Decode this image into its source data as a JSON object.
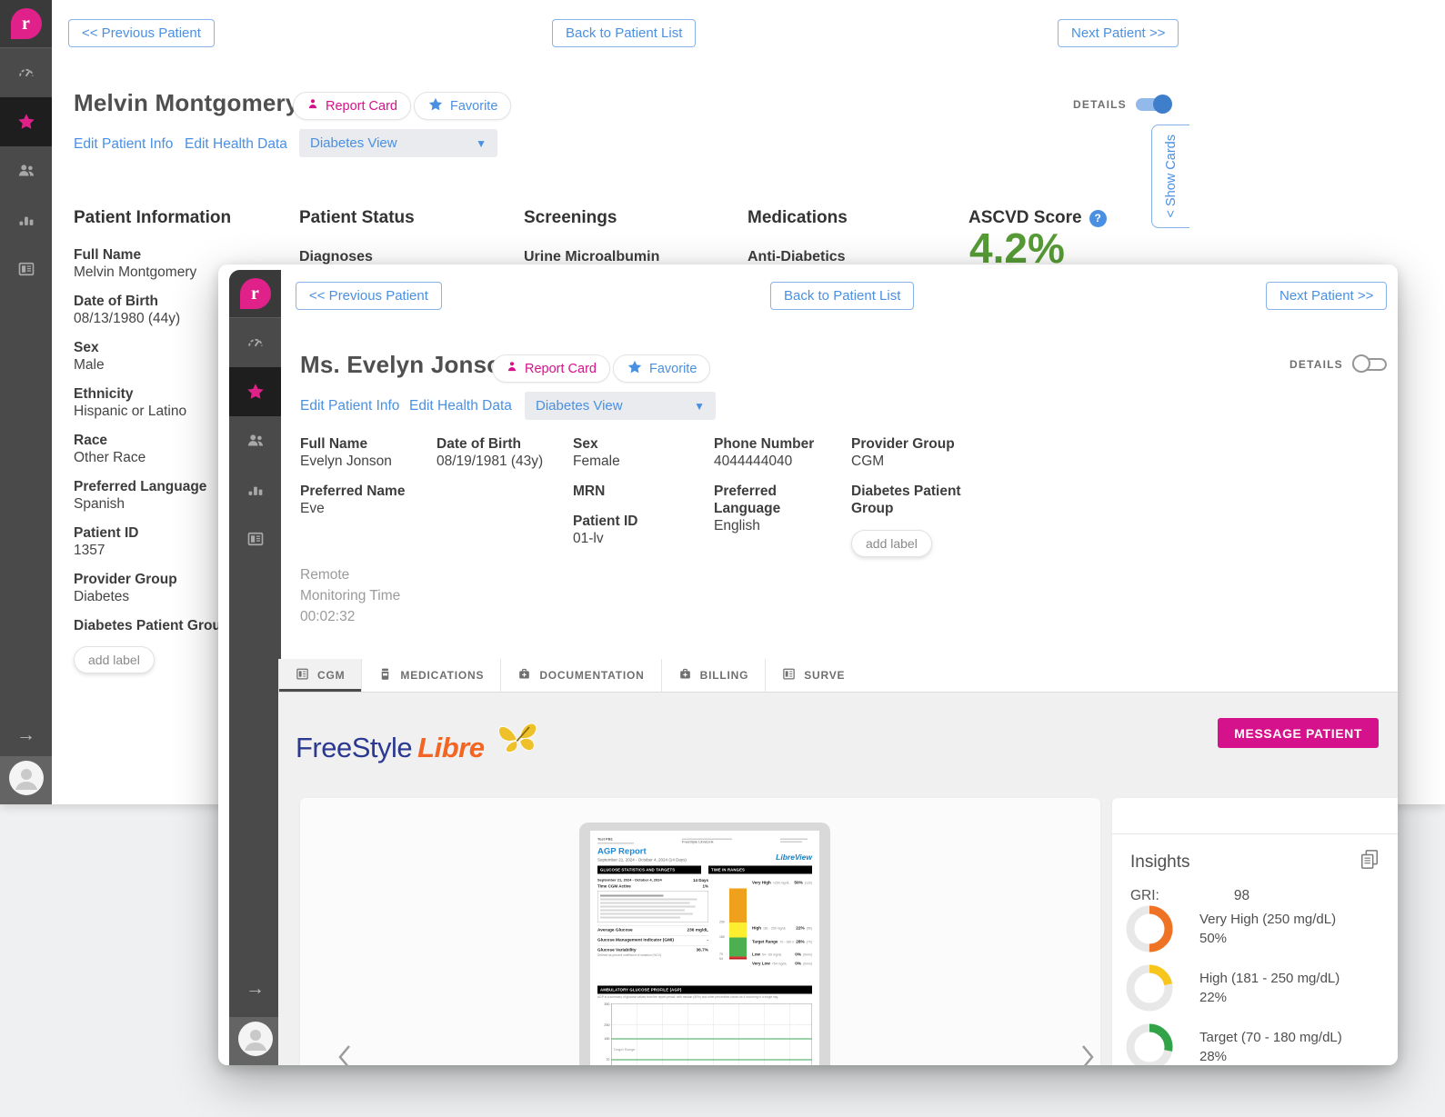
{
  "app": {
    "logo_letter": "r",
    "nav": {
      "previous_patient": "<< Previous Patient",
      "back_to_patient_list": "Back to Patient List",
      "next_patient": "Next Patient >>"
    },
    "actions": {
      "report_card": "Report Card",
      "favorite": "Favorite",
      "edit_patient_info": "Edit Patient Info",
      "edit_health_data": "Edit Health Data",
      "view_selector": "Diabetes View",
      "details_toggle": "DETAILS",
      "add_label": "add label",
      "show_cards": "< Show Cards"
    }
  },
  "background_page": {
    "patient_name": "Melvin Montgomery",
    "sections": {
      "patient_information": {
        "title": "Patient Information",
        "fields": [
          {
            "label": "Full Name",
            "value": "Melvin Montgomery"
          },
          {
            "label": "Date of Birth",
            "value": "08/13/1980 (44y)"
          },
          {
            "label": "Sex",
            "value": "Male"
          },
          {
            "label": "Ethnicity",
            "value": "Hispanic or Latino"
          },
          {
            "label": "Race",
            "value": "Other Race"
          },
          {
            "label": "Preferred Language",
            "value": "Spanish"
          },
          {
            "label": "Patient ID",
            "value": "1357"
          },
          {
            "label": "Provider Group",
            "value": "Diabetes"
          },
          {
            "label": "Diabetes Patient Group",
            "value": ""
          }
        ]
      },
      "patient_status": {
        "title": "Patient Status",
        "first_item": "Diagnoses"
      },
      "screenings": {
        "title": "Screenings",
        "first_item": "Urine Microalbumin"
      },
      "medications": {
        "title": "Medications",
        "first_item": "Anti-Diabetics"
      },
      "ascvd": {
        "title": "ASCVD Score",
        "value": "4.2%",
        "color": "#569b36"
      }
    }
  },
  "modal": {
    "patient_name": "Ms. Evelyn Jonson",
    "details_columns": [
      {
        "fields": [
          {
            "label": "Full Name",
            "value": "Evelyn Jonson"
          },
          {
            "label": "Preferred Name",
            "value": "Eve"
          }
        ]
      },
      {
        "fields": [
          {
            "label": "Date of Birth",
            "value": "08/19/1981 (43y)"
          }
        ]
      },
      {
        "fields": [
          {
            "label": "Sex",
            "value": "Female"
          },
          {
            "label": "MRN",
            "value": ""
          },
          {
            "label": "Patient ID",
            "value": "01-lv"
          }
        ]
      },
      {
        "fields": [
          {
            "label": "Phone Number",
            "value": "4044444040"
          },
          {
            "label": "Preferred Language",
            "value": "English"
          }
        ]
      },
      {
        "fields": [
          {
            "label": "Provider Group",
            "value": "CGM"
          },
          {
            "label": "Diabetes Patient Group",
            "value": ""
          }
        ]
      }
    ],
    "remote_monitoring": {
      "label": "Remote Monitoring Time",
      "value": "00:02:32"
    },
    "tabs": [
      {
        "label": "CGM"
      },
      {
        "label": "MEDICATIONS"
      },
      {
        "label": "DOCUMENTATION"
      },
      {
        "label": "BILLING"
      },
      {
        "label": "SURVE"
      }
    ],
    "cgm_tab": {
      "brand_primary": "FreeStyle",
      "brand_secondary": "Libre",
      "message_patient": "MESSAGE PATIENT",
      "insights": {
        "title": "Insights",
        "gri_label": "GRI:",
        "gri_value": "98",
        "ranges": [
          {
            "label": "Very High (250 mg/dL)",
            "percent": "50%",
            "value": 50,
            "color": "#ee7324"
          },
          {
            "label": "High (181 - 250 mg/dL)",
            "percent": "22%",
            "value": 22,
            "color": "#f8c51c"
          },
          {
            "label": "Target (70 - 180 mg/dL)",
            "percent": "28%",
            "value": 28,
            "color": "#33a349"
          }
        ]
      },
      "agp_report": {
        "patient": "Test PB1",
        "device": "FreeStyle LibreLink",
        "title": "AGP Report",
        "date_range": "September 21, 2024 - October 4, 2024",
        "days": "(14 Days)",
        "brand": "LibreView",
        "section_stats": "GLUCOSE STATISTICS AND TARGETS",
        "section_ranges": "TIME IN RANGES",
        "section_agp": "AMBULATORY GLUCOSE PROFILE (AGP)",
        "stats_days": "14 Days",
        "cgm_active_label": "Time CGM Active",
        "cgm_active_value": "1%",
        "stats": [
          {
            "label": "Average Glucose",
            "value": "236 mg/dL"
          },
          {
            "label": "Glucose Management Indicator (GMI)",
            "value": "-"
          },
          {
            "label": "Glucose Variability",
            "value": "36.7%"
          }
        ],
        "ranges": [
          {
            "label": "Very High",
            "detail": ">250 mg/dL",
            "percent": "50%",
            "time": "(12h)",
            "value": 50,
            "color": "#f0a11c"
          },
          {
            "label": "High",
            "detail": "181 - 250 mg/dL",
            "percent": "22%",
            "time": "(5h)",
            "value": 22,
            "color": "#fdee30"
          },
          {
            "label": "Target Range",
            "detail": "70 - 180 mg/dL",
            "percent": "28%",
            "time": "(7h)",
            "value": 28,
            "color": "#4caf50"
          },
          {
            "label": "Low",
            "detail": "54 - 69 mg/dL",
            "percent": "0%",
            "time": "(0min)",
            "value": 0,
            "color": "#e53935"
          },
          {
            "label": "Very Low",
            "detail": "<54 mg/dL",
            "percent": "0%",
            "time": "(0min)",
            "value": 0,
            "color": "#b71c1c"
          }
        ],
        "axis_labels": [
          "350",
          "250",
          "180",
          "70",
          "54"
        ],
        "target_range_label": "Target Range"
      }
    }
  }
}
